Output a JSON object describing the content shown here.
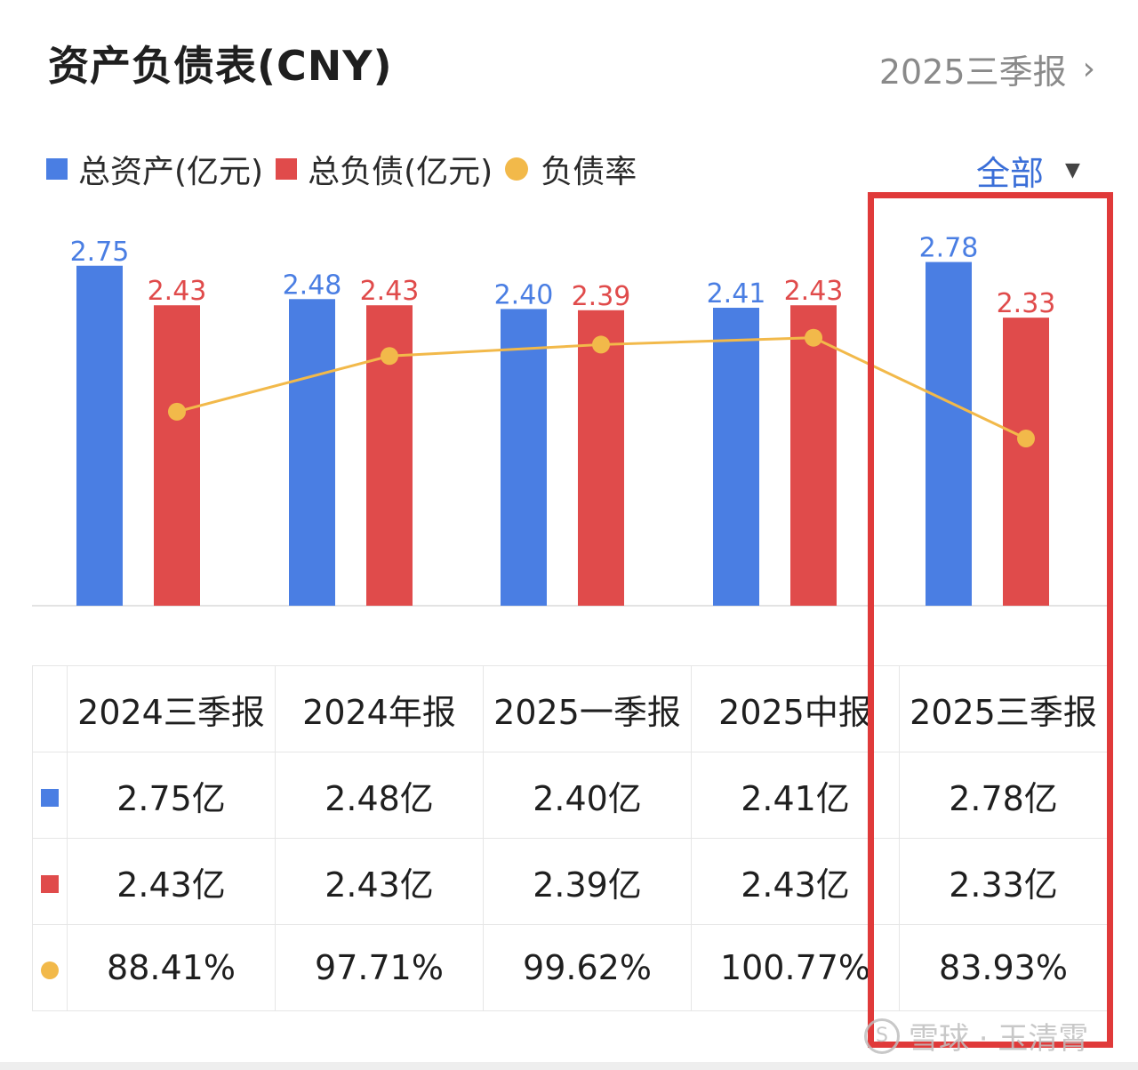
{
  "header": {
    "title": "资产负债表(CNY)",
    "period": "2025三季报"
  },
  "legend": {
    "assets_label": "总资产(亿元)",
    "liabilities_label": "总负债(亿元)",
    "ratio_label": "负债率",
    "filter_label": "全部"
  },
  "colors": {
    "assets": "#4a7ee3",
    "liabilities": "#e04b4b",
    "ratio": "#f2b94a",
    "highlight": "#e03a3a"
  },
  "chart_data": {
    "type": "bar",
    "categories": [
      "2024三季报",
      "2024年报",
      "2025一季报",
      "2025中报",
      "2025三季报"
    ],
    "series": [
      {
        "name": "总资产(亿元)",
        "values": [
          2.75,
          2.48,
          2.4,
          2.41,
          2.78
        ],
        "labels": [
          "2.75",
          "2.48",
          "2.40",
          "2.41",
          "2.78"
        ]
      },
      {
        "name": "总负债(亿元)",
        "values": [
          2.43,
          2.43,
          2.39,
          2.43,
          2.33
        ],
        "labels": [
          "2.43",
          "2.43",
          "2.39",
          "2.43",
          "2.33"
        ]
      },
      {
        "name": "负债率",
        "type": "line",
        "values": [
          88.41,
          97.71,
          99.62,
          100.77,
          83.93
        ]
      }
    ]
  },
  "table": {
    "headers": [
      "2024三季报",
      "2024年报",
      "2025一季报",
      "2025中报",
      "2025三季报"
    ],
    "assets_row": [
      "2.75亿",
      "2.48亿",
      "2.40亿",
      "2.41亿",
      "2.78亿"
    ],
    "liabilities_row": [
      "2.43亿",
      "2.43亿",
      "2.39亿",
      "2.43亿",
      "2.33亿"
    ],
    "ratio_row": [
      "88.41%",
      "97.71%",
      "99.62%",
      "100.77%",
      "83.93%"
    ]
  },
  "watermark": "雪球 · 玉清霄",
  "watermark_logo": "S"
}
